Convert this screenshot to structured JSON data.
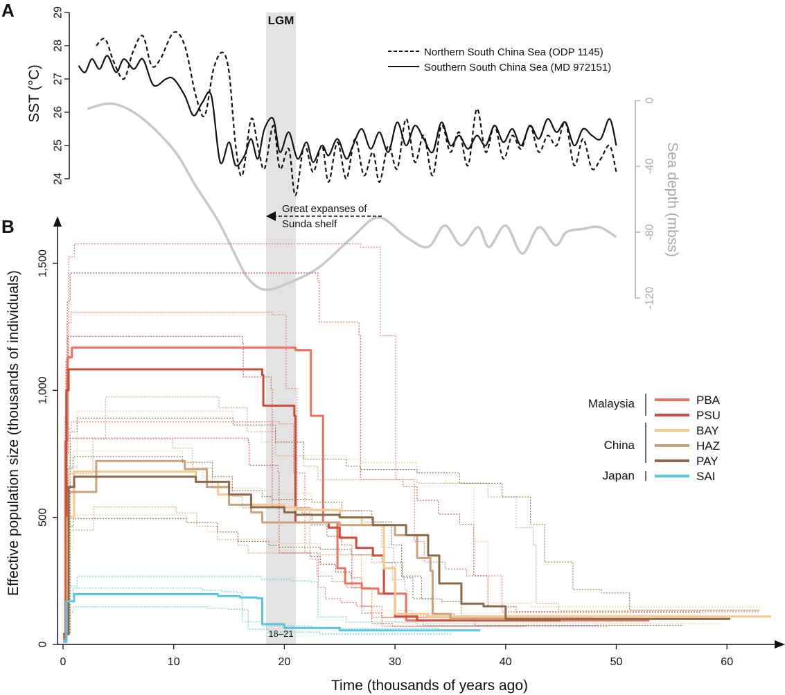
{
  "chart_data": [
    {
      "panel": "A",
      "type": "line",
      "ylabel": "SST (°C)",
      "ylim": [
        24,
        29
      ],
      "yticks": [
        "24",
        "25",
        "26",
        "27",
        "28",
        "29"
      ],
      "x_units": "thousands of years ago",
      "xlim": [
        0,
        50
      ],
      "legend": {
        "position": "top-right",
        "entries": [
          {
            "label": "Northern South China Sea (ODP 1145)",
            "style": "dashed"
          },
          {
            "label": "Southern South China Sea (MD 972151)",
            "style": "solid"
          }
        ]
      },
      "series": [
        {
          "name": "Northern South China Sea (ODP 1145)",
          "style": "dashed",
          "x": [
            3,
            3.8,
            4.6,
            5.5,
            6.3,
            7.2,
            8,
            8.8,
            10,
            11,
            12,
            12.8,
            13.6,
            14.4,
            15,
            15.6,
            16.2,
            17,
            17.6,
            18.2,
            19,
            19.6,
            20.4,
            21,
            21.8,
            22.6,
            23.4,
            24,
            24.8,
            25.6,
            26.4,
            27.2,
            28,
            28.6,
            29.4,
            30.2,
            31,
            31.8,
            32.6,
            33.4,
            34.2,
            35,
            35.8,
            36.6,
            37.4,
            38.2,
            39,
            39.8,
            40.6,
            41.4,
            42.2,
            43,
            43.8,
            44.6,
            45.4,
            46.2,
            47,
            47.8,
            48.6,
            49.4,
            50
          ],
          "y": [
            28.0,
            28.2,
            27.5,
            27.0,
            27.8,
            28.3,
            27.4,
            27.6,
            28.4,
            28.0,
            26.5,
            25.9,
            27.3,
            27.8,
            27.2,
            25.0,
            24.1,
            25.8,
            25.0,
            24.3,
            25.6,
            24.3,
            24.9,
            23.5,
            25.0,
            24.2,
            25.0,
            23.9,
            25.1,
            24.0,
            25.2,
            24.1,
            24.8,
            23.9,
            25.0,
            24.3,
            25.8,
            24.5,
            25.3,
            24.1,
            25.6,
            24.8,
            25.4,
            24.4,
            26.1,
            24.8,
            25.6,
            24.6,
            25.3,
            24.9,
            25.6,
            24.8,
            25.3,
            25.0,
            25.7,
            24.4,
            25.2,
            24.3,
            24.6,
            25.0,
            24.2
          ]
        },
        {
          "name": "Southern South China Sea (MD 972151)",
          "style": "solid",
          "x": [
            1.4,
            2,
            2.6,
            3.3,
            4,
            4.8,
            5.5,
            6.4,
            7.2,
            8,
            8.5,
            9.3,
            10,
            11,
            11.8,
            12.6,
            13.4,
            14.2,
            15,
            15.6,
            16.4,
            17,
            17.6,
            18.2,
            19,
            19.6,
            20.4,
            21.2,
            22,
            22.6,
            23.4,
            24,
            24.8,
            25.6,
            26.2,
            27,
            27.8,
            28.6,
            29.4,
            30.2,
            31,
            31.8,
            32.6,
            33.4,
            34.2,
            35,
            35.8,
            36.6,
            37.4,
            38.2,
            39,
            39.8,
            40.6,
            41.4,
            42.2,
            43,
            43.8,
            44.6,
            45.4,
            46.2,
            47,
            47.8,
            48.6,
            49.4,
            50
          ],
          "y": [
            27.4,
            27.2,
            27.6,
            27.3,
            27.7,
            27.2,
            27.6,
            27.3,
            27.6,
            26.9,
            26.8,
            27.0,
            27.0,
            26.5,
            25.9,
            26.3,
            26.5,
            24.5,
            25.1,
            24.4,
            24.7,
            25.2,
            24.6,
            25.5,
            25.8,
            24.8,
            25.4,
            24.6,
            25.1,
            24.5,
            25.0,
            24.7,
            25.2,
            24.6,
            25.0,
            25.5,
            24.9,
            25.4,
            24.8,
            25.7,
            25.0,
            25.6,
            25.2,
            24.8,
            25.7,
            25.0,
            25.3,
            24.9,
            25.3,
            25.0,
            25.6,
            25.1,
            25.5,
            25.0,
            25.6,
            25.2,
            25.8,
            25.4,
            25.7,
            25.0,
            25.5,
            25.3,
            25.2,
            25.8,
            25.0
          ]
        },
        {
          "name": "Sea depth",
          "axis": "right",
          "color": "#c8c8c8",
          "x": [
            2.2,
            4.5,
            7,
            10,
            12,
            14,
            15.5,
            16.5,
            17.5,
            18.5,
            20,
            23,
            26,
            28.5,
            31,
            33,
            34.5,
            36,
            37.5,
            38.5,
            40,
            41.5,
            43,
            44.5,
            45.5,
            47,
            48.5,
            50
          ],
          "y": [
            -5,
            -2,
            -10,
            -30,
            -52,
            -73,
            -93,
            -106,
            -113,
            -115,
            -112,
            -102,
            -84,
            -71,
            -83,
            -89,
            -76,
            -88,
            -77,
            -89,
            -76,
            -93,
            -77,
            -88,
            -80,
            -78,
            -77,
            -83
          ]
        }
      ],
      "right_axis": {
        "label": "Sea depth (mbss)",
        "ylim": [
          -120,
          0
        ],
        "yticks": [
          "0",
          "-40",
          "-80",
          "-120"
        ],
        "color": "#a9a9a9"
      },
      "annotations": [
        "LGM",
        "Great expanses of",
        "Sunda shelf"
      ]
    },
    {
      "panel": "B",
      "type": "line",
      "xlabel": "Time (thousands of years ago)",
      "ylabel": "Effective population size (thousands of individuals)",
      "xlim": [
        0,
        64
      ],
      "ylim": [
        0,
        1650
      ],
      "xticks": [
        "0",
        "10",
        "20",
        "30",
        "40",
        "50",
        "60"
      ],
      "yticks": [
        "0",
        "500",
        "1,000",
        "1,500"
      ],
      "lgm_band": {
        "from": 18,
        "to": 21,
        "label": "18–21"
      },
      "legend": {
        "position": "right",
        "groups": [
          {
            "region": "Malaysia",
            "entries": [
              "PBA",
              "PSU"
            ]
          },
          {
            "region": "China",
            "entries": [
              "BAY",
              "HAZ",
              "PAY"
            ]
          },
          {
            "region": "Japan",
            "entries": [
              "SAI"
            ]
          }
        ]
      },
      "series": [
        {
          "name": "PBA",
          "color": "#ec7160",
          "x": [
            0,
            0.2,
            0.4,
            0.8,
            19,
            21,
            22.4,
            22.4,
            23.5,
            23.5,
            24.8,
            25.5,
            27,
            28.5,
            31,
            53
          ],
          "y": [
            20,
            800,
            1130,
            1168,
            1168,
            1158,
            1140,
            900,
            620,
            480,
            300,
            240,
            220,
            200,
            95,
            95
          ]
        },
        {
          "name": "PSU",
          "color": "#cc4b3b",
          "x": [
            0,
            0.3,
            0.5,
            17.6,
            18,
            18.1,
            20.9,
            21,
            24,
            25,
            26.5,
            28,
            29,
            30,
            32,
            45
          ],
          "y": [
            30,
            1000,
            1083,
            1083,
            1060,
            940,
            900,
            480,
            460,
            420,
            380,
            350,
            200,
            110,
            95,
            95
          ]
        },
        {
          "name": "BAY",
          "color": "#f8c98f",
          "x": [
            0,
            0.4,
            1,
            10,
            12,
            14,
            17,
            20,
            21,
            25,
            27,
            29,
            30,
            33,
            64
          ],
          "y": [
            40,
            500,
            680,
            680,
            640,
            590,
            550,
            540,
            530,
            500,
            470,
            300,
            120,
            110,
            110
          ]
        },
        {
          "name": "HAZ",
          "color": "#c9a27d",
          "x": [
            0,
            0.5,
            3,
            10,
            11,
            13,
            15,
            17,
            18,
            21,
            25,
            28,
            30,
            32,
            33.2,
            33.4,
            35,
            52
          ],
          "y": [
            40,
            600,
            722,
            722,
            690,
            620,
            550,
            520,
            480,
            480,
            470,
            470,
            430,
            340,
            290,
            120,
            100,
            100
          ]
        },
        {
          "name": "PAY",
          "color": "#8a6a4a",
          "x": [
            0,
            0.5,
            1,
            10,
            12,
            15,
            17,
            20,
            21,
            25,
            28,
            31,
            33,
            34,
            36,
            38,
            40,
            60.3
          ],
          "y": [
            40,
            620,
            660,
            660,
            640,
            590,
            540,
            520,
            510,
            500,
            470,
            430,
            350,
            240,
            160,
            150,
            100,
            100
          ]
        },
        {
          "name": "SAI",
          "color": "#5ac6df",
          "x": [
            0,
            0.3,
            1,
            10,
            14,
            16,
            17.5,
            18,
            20,
            25,
            37.7
          ],
          "y": [
            10,
            170,
            198,
            198,
            190,
            185,
            182,
            80,
            65,
            55,
            55
          ]
        }
      ]
    }
  ],
  "panel_labels": [
    "A",
    "B"
  ]
}
